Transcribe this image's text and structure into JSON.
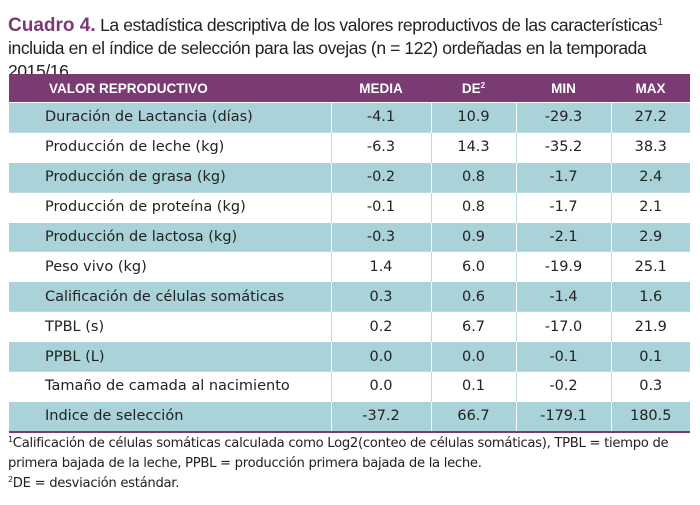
{
  "caption": {
    "label": "Cuadro 4.",
    "text_before_sup": " La estadística descriptiva de los valores reproductivos de las características",
    "sup": "1",
    "text_after_sup": " incluida en el índice de selección para las ovejas (n = 122) ordeñadas en la temporada 2015/16."
  },
  "table": {
    "headers": {
      "col1": "VALOR REPRODUCTIVO",
      "col2": "MEDIA",
      "col3": "DE",
      "col3_sup": "2",
      "col4": "MIN",
      "col5": "MAX"
    },
    "rows": [
      {
        "name": "Duración de Lactancia (días)",
        "media": "-4.1",
        "de": "10.9",
        "min": "-29.3",
        "max": "27.2"
      },
      {
        "name": "Producción de leche (kg)",
        "media": "-6.3",
        "de": "14.3",
        "min": "-35.2",
        "max": "38.3"
      },
      {
        "name": "Producción de grasa (kg)",
        "media": "-0.2",
        "de": "0.8",
        "min": "-1.7",
        "max": "2.4"
      },
      {
        "name": "Producción de proteína (kg)",
        "media": "-0.1",
        "de": "0.8",
        "min": "-1.7",
        "max": "2.1"
      },
      {
        "name": "Producción de lactosa (kg)",
        "media": "-0.3",
        "de": "0.9",
        "min": "-2.1",
        "max": "2.9"
      },
      {
        "name": "Peso vivo (kg)",
        "media": "1.4",
        "de": "6.0",
        "min": "-19.9",
        "max": "25.1"
      },
      {
        "name": "Calificación de células somáticas",
        "media": "0.3",
        "de": "0.6",
        "min": "-1.4",
        "max": "1.6"
      },
      {
        "name": "TPBL (s)",
        "media": "0.2",
        "de": "6.7",
        "min": "-17.0",
        "max": "21.9"
      },
      {
        "name": "PPBL (L)",
        "media": "0.0",
        "de": "0.0",
        "min": "-0.1",
        "max": "0.1"
      },
      {
        "name": "Tamaño de camada al nacimiento",
        "media": "0.0",
        "de": "0.1",
        "min": "-0.2",
        "max": "0.3"
      },
      {
        "name": "Indice de selección",
        "media": "-37.2",
        "de": "66.7",
        "min": "-179.1",
        "max": "180.5"
      }
    ]
  },
  "notes": {
    "note1_sup": "1",
    "note1_text": "Calificación de células somáticas calculada como Log2(conteo de células somáticas), TPBL = tiempo de primera bajada de la leche, PPBL = producción primera bajada de la leche.",
    "note2_sup": "2",
    "note2_text": "DE = desviación estándar."
  },
  "colors": {
    "header": "#7a3a73",
    "band": "#a9d3d8"
  }
}
